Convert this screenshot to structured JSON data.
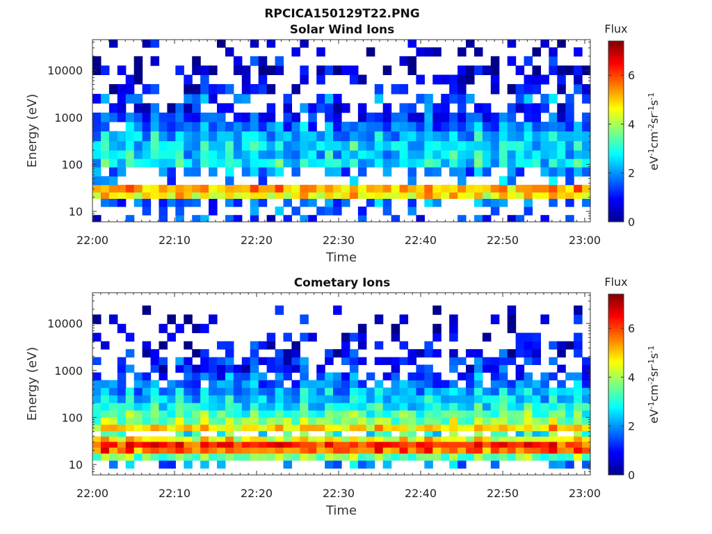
{
  "figure_title": "RPCICA150129T22.PNG",
  "chart_data": [
    {
      "type": "heatmap",
      "title": "Solar Wind Ions",
      "xlabel": "Time",
      "ylabel": "Energy (eV)",
      "x_tick_labels": [
        "22:00",
        "22:10",
        "22:20",
        "22:30",
        "22:40",
        "22:50",
        "23:00"
      ],
      "x_range": [
        "22:00",
        "23:00"
      ],
      "y_scale": "log",
      "y_tick_values": [
        10,
        100,
        1000,
        10000
      ],
      "y_tick_labels": [
        "10",
        "100",
        "1000",
        "10000"
      ],
      "ylim": [
        6,
        45000
      ],
      "colorbar": {
        "label": "Flux",
        "units": "eV⁻¹cm⁻²sr⁻¹s⁻¹",
        "units_base": [
          "eV",
          "cm",
          "sr",
          "s"
        ],
        "units_exp": [
          "-1",
          "-2",
          "-1",
          "-1"
        ],
        "range": [
          0,
          7.4
        ],
        "tick_values": [
          0,
          2,
          4,
          6
        ],
        "tick_labels": [
          "0",
          "2",
          "4",
          "6"
        ],
        "colormap": "jet"
      },
      "energy_profile": [
        {
          "energy": 7,
          "flux": 1.2,
          "fill": 0.45
        },
        {
          "energy": 10,
          "flux": 1.4,
          "fill": 0.35
        },
        {
          "energy": 16,
          "flux": 1.6,
          "fill": 0.55
        },
        {
          "energy": 22,
          "flux": 4.6,
          "fill": 1.0
        },
        {
          "energy": 30,
          "flux": 5.0,
          "fill": 1.0
        },
        {
          "energy": 45,
          "flux": 1.8,
          "fill": 0.3
        },
        {
          "energy": 70,
          "flux": 1.8,
          "fill": 0.6
        },
        {
          "energy": 110,
          "flux": 2.6,
          "fill": 1.0
        },
        {
          "energy": 160,
          "flux": 2.4,
          "fill": 1.0
        },
        {
          "energy": 250,
          "flux": 2.6,
          "fill": 1.0
        },
        {
          "energy": 400,
          "flux": 2.3,
          "fill": 1.0
        },
        {
          "energy": 650,
          "flux": 1.7,
          "fill": 0.95
        },
        {
          "energy": 1000,
          "flux": 1.3,
          "fill": 0.85
        },
        {
          "energy": 1600,
          "flux": 1.0,
          "fill": 0.6
        },
        {
          "energy": 2500,
          "flux": 1.5,
          "fill": 0.4
        },
        {
          "energy": 4000,
          "flux": 0.8,
          "fill": 0.45
        },
        {
          "energy": 6500,
          "flux": 0.6,
          "fill": 0.35
        },
        {
          "energy": 10000,
          "flux": 0.4,
          "fill": 0.3
        },
        {
          "energy": 16000,
          "flux": 0.5,
          "fill": 0.3
        },
        {
          "energy": 25000,
          "flux": 0.4,
          "fill": 0.25
        },
        {
          "energy": 38000,
          "flux": 0.4,
          "fill": 0.2
        }
      ]
    },
    {
      "type": "heatmap",
      "title": "Cometary Ions",
      "xlabel": "Time",
      "ylabel": "Energy (eV)",
      "x_tick_labels": [
        "22:00",
        "22:10",
        "22:20",
        "22:30",
        "22:40",
        "22:50",
        "23:00"
      ],
      "x_range": [
        "22:00",
        "23:00"
      ],
      "y_scale": "log",
      "y_tick_values": [
        10,
        100,
        1000,
        10000
      ],
      "y_tick_labels": [
        "10",
        "100",
        "1000",
        "10000"
      ],
      "ylim": [
        6,
        45000
      ],
      "colorbar": {
        "label": "Flux",
        "units": "eV⁻¹cm⁻²sr⁻¹s⁻¹",
        "units_base": [
          "eV",
          "cm",
          "sr",
          "s"
        ],
        "units_exp": [
          "-1",
          "-2",
          "-1",
          "-1"
        ],
        "range": [
          0,
          7.4
        ],
        "tick_values": [
          0,
          2,
          4,
          6
        ],
        "tick_labels": [
          "0",
          "2",
          "4",
          "6"
        ],
        "colormap": "jet"
      },
      "energy_profile": [
        {
          "energy": 10,
          "flux": 1.8,
          "fill": 0.45
        },
        {
          "energy": 15,
          "flux": 3.5,
          "fill": 1.0
        },
        {
          "energy": 20,
          "flux": 5.6,
          "fill": 1.0
        },
        {
          "energy": 27,
          "flux": 6.1,
          "fill": 1.0
        },
        {
          "energy": 35,
          "flux": 4.5,
          "fill": 1.0
        },
        {
          "energy": 45,
          "flux": 3.0,
          "fill": 0.5
        },
        {
          "energy": 60,
          "flux": 4.8,
          "fill": 1.0
        },
        {
          "energy": 85,
          "flux": 3.8,
          "fill": 1.0
        },
        {
          "energy": 120,
          "flux": 3.3,
          "fill": 1.0
        },
        {
          "energy": 170,
          "flux": 2.8,
          "fill": 1.0
        },
        {
          "energy": 250,
          "flux": 2.4,
          "fill": 1.0
        },
        {
          "energy": 360,
          "flux": 2.1,
          "fill": 1.0
        },
        {
          "energy": 520,
          "flux": 1.8,
          "fill": 0.85
        },
        {
          "energy": 750,
          "flux": 1.5,
          "fill": 0.7
        },
        {
          "energy": 1100,
          "flux": 1.0,
          "fill": 0.5
        },
        {
          "energy": 1600,
          "flux": 1.1,
          "fill": 0.7
        },
        {
          "energy": 2300,
          "flux": 0.7,
          "fill": 0.55
        },
        {
          "energy": 3500,
          "flux": 0.9,
          "fill": 0.3
        },
        {
          "energy": 5000,
          "flux": 0.8,
          "fill": 0.25
        },
        {
          "energy": 8000,
          "flux": 0.5,
          "fill": 0.15
        },
        {
          "energy": 12000,
          "flux": 0.5,
          "fill": 0.12
        },
        {
          "energy": 20000,
          "flux": 0.5,
          "fill": 0.08
        }
      ]
    }
  ]
}
